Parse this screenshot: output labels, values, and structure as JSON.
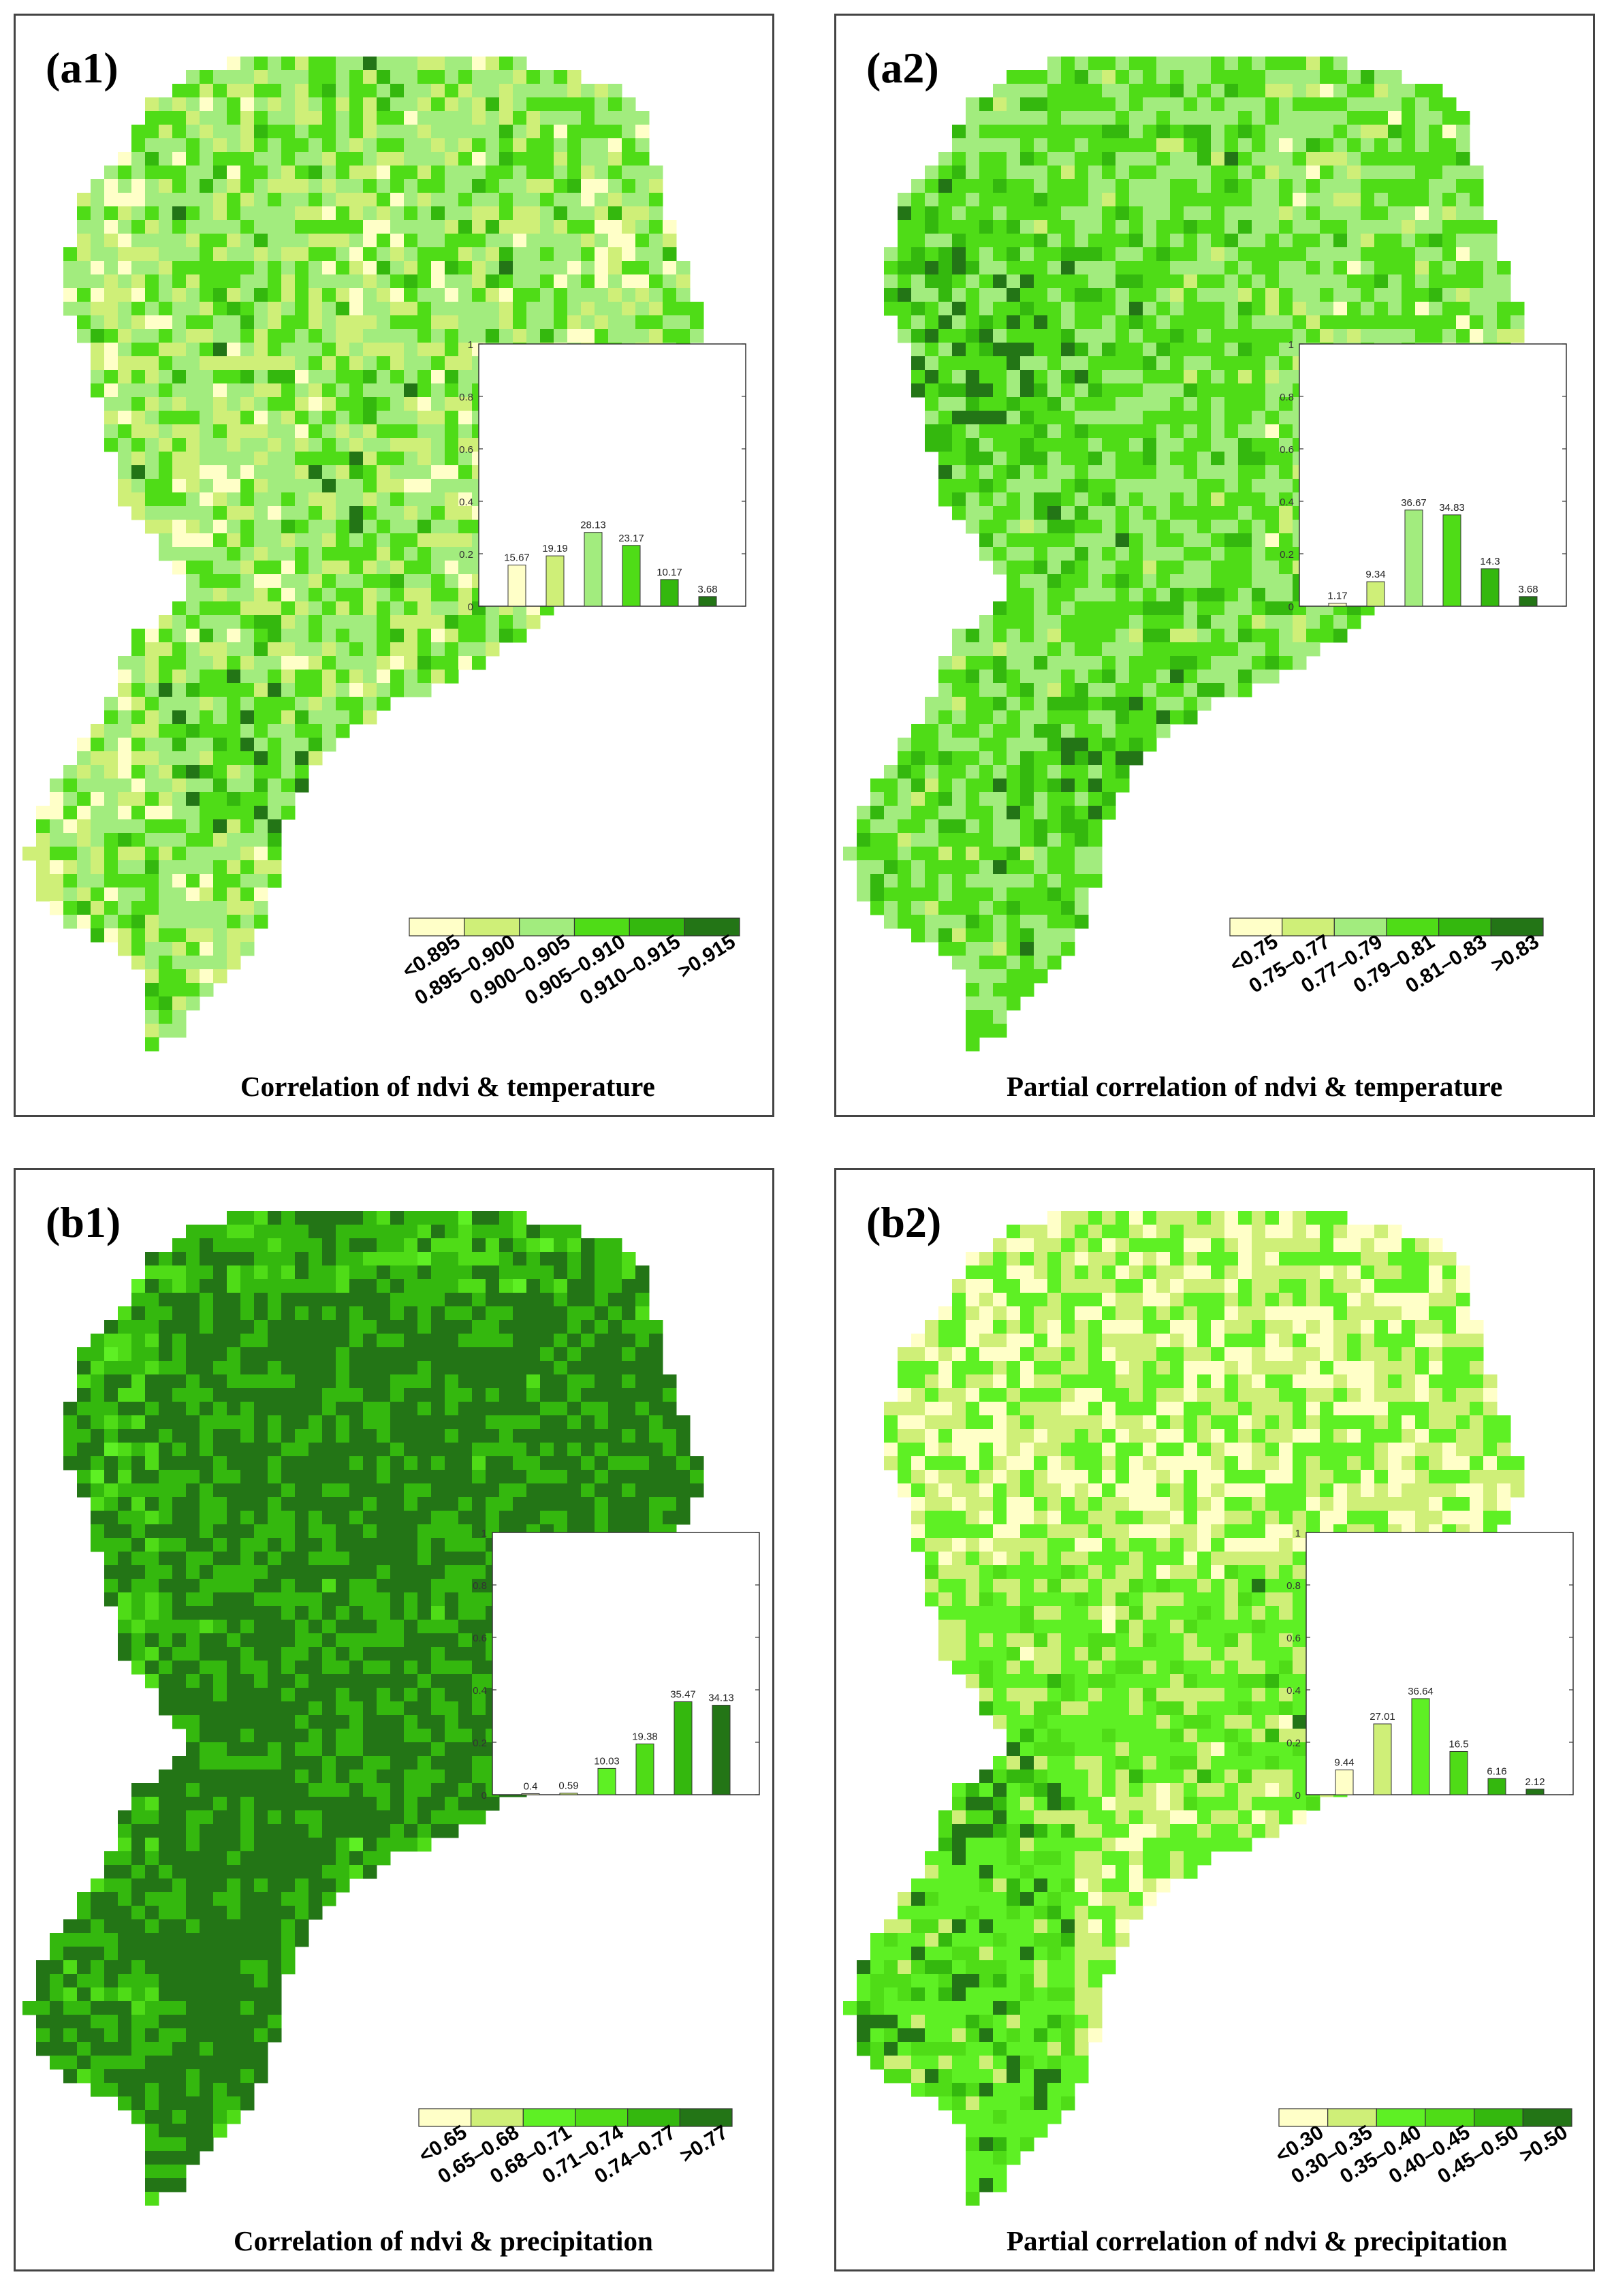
{
  "panels": [
    {
      "id": "a1",
      "label": "(a1)",
      "caption": "Correlation of ndvi & temperature",
      "legend_categories": [
        "<0.895",
        "0.895–0.900",
        "0.900–0.905",
        "0.905–0.910",
        "0.910–0.915",
        ">0.915"
      ],
      "percentages": [
        15.67,
        19.19,
        28.13,
        23.17,
        10.17,
        3.68
      ],
      "palette": [
        "#ffffc8",
        "#cfef78",
        "#a2ec7e",
        "#4fdc17",
        "#34b80e",
        "#237516"
      ],
      "dominant_pattern": "mixed"
    },
    {
      "id": "a2",
      "label": "(a2)",
      "caption": "Partial correlation of ndvi & temperature",
      "legend_categories": [
        "<0.75",
        "0.75–0.77",
        "0.77–0.79",
        "0.79–0.81",
        "0.81–0.83",
        ">0.83"
      ],
      "percentages": [
        1.17,
        9.34,
        36.67,
        34.83,
        14.3,
        3.68
      ],
      "palette": [
        "#ffffc8",
        "#cfef78",
        "#a2ec7e",
        "#4fdc17",
        "#34b80e",
        "#237516"
      ],
      "dominant_pattern": "mid"
    },
    {
      "id": "b1",
      "label": "(b1)",
      "caption": "Correlation of ndvi & precipitation",
      "legend_categories": [
        "<0.65",
        "0.65–0.68",
        "0.68–0.71",
        "0.71–0.74",
        "0.74–0.77",
        ">0.77"
      ],
      "percentages": [
        0.4,
        0.59,
        10.03,
        19.38,
        35.47,
        34.13
      ],
      "palette": [
        "#ffffc8",
        "#cfef78",
        "#5ef024",
        "#4fdc17",
        "#34b80e",
        "#237516"
      ],
      "dominant_pattern": "high"
    },
    {
      "id": "b2",
      "label": "(b2)",
      "caption": "Partial correlation of ndvi & precipitation",
      "legend_categories": [
        "<0.30",
        "0.30–0.35",
        "0.35–0.40",
        "0.40–0.45",
        "0.45–0.50",
        ">0.50"
      ],
      "percentages": [
        9.44,
        27.01,
        36.64,
        16.5,
        6.16,
        2.12
      ],
      "palette": [
        "#ffffc8",
        "#cfef78",
        "#5ef024",
        "#4fdc17",
        "#34b80e",
        "#237516"
      ],
      "dominant_pattern": "low"
    }
  ],
  "inset_axis": {
    "ylim": [
      0,
      1
    ],
    "yticks": [
      "0",
      "0.2",
      "0.4",
      "0.6",
      "0.8",
      "1"
    ]
  }
}
